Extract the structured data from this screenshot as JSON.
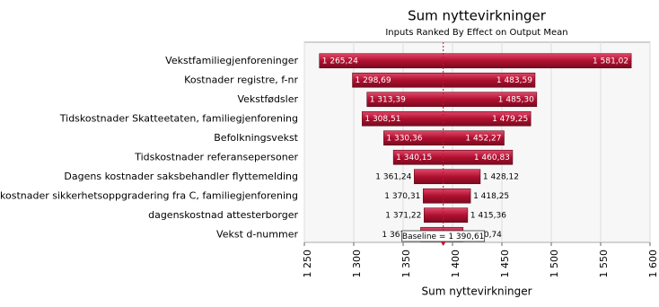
{
  "chart_data": {
    "type": "tornado",
    "title": "Sum nyttevirkninger",
    "subtitle": "Inputs Ranked By Effect on Output Mean",
    "x_label": "Sum nyttevirkninger",
    "categories": [
      "Vekstfamiliegjenforeninger",
      "Kostnader registre, f-nr",
      "Vekstfødsler",
      "Tidskostnader Skatteetaten, familiegjenforening",
      "Befolkningsvekst",
      "Tidskostnader referansepersoner",
      "Dagens kostnader saksbehandler flyttemelding",
      "Tidskostnader sikkerhetsoppgradering fra C, familiegjenforening",
      "dagenskostnad attesterborger",
      "Vekst d-nummer"
    ],
    "series": [
      {
        "color": "#c0143c",
        "values": [
          1265.24,
          1298.69,
          1313.39,
          1308.51,
          1330.36,
          1340.15,
          1361.24,
          1370.31,
          1371.22,
          1367.72
        ],
        "value_labels": [
          "1 265,24",
          "1 298,69",
          "1 313,39",
          "1 308,51",
          "1 330,36",
          "1 340,15",
          "1 361,24",
          "1 370,31",
          "1 371,22",
          "1 367,72"
        ]
      },
      {
        "color": "#c0143c",
        "values": [
          1581.02,
          1483.59,
          1485.3,
          1479.25,
          1452.27,
          1460.83,
          1428.12,
          1418.25,
          1415.36,
          1410.74
        ],
        "value_labels": [
          "1 581,02",
          "1 483,59",
          "1 485,30",
          "1 479,25",
          "1 452,27",
          "1 460,83",
          "1 428,12",
          "1 418,25",
          "1 415,36",
          "1 410,74"
        ]
      }
    ],
    "baseline": 1390.61,
    "baseline_label": "Baseline = 1 390,61",
    "xlim": [
      1250,
      1600
    ],
    "xticks": [
      {
        "value": 1250,
        "label": "1 250"
      },
      {
        "value": 1300,
        "label": "1 300"
      },
      {
        "value": 1350,
        "label": "1 350"
      },
      {
        "value": 1400,
        "label": "1 400"
      },
      {
        "value": 1450,
        "label": "1 450"
      },
      {
        "value": 1500,
        "label": "1 500"
      },
      {
        "value": 1550,
        "label": "1 550"
      },
      {
        "value": 1600,
        "label": "1 600"
      }
    ],
    "grid": true
  }
}
